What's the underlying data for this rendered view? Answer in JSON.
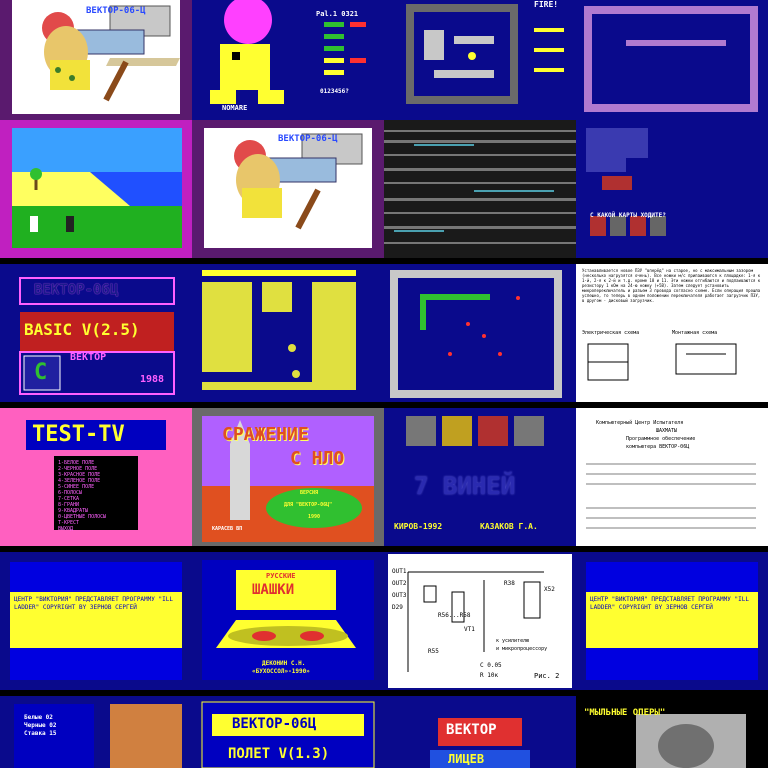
{
  "gallery": {
    "tiles": [
      {
        "caption_top": "ВЕКТОР-06-Ц"
      },
      {
        "status": "NOMARE",
        "score_label": "Pal.1 0321",
        "digits": "0123456?"
      },
      {
        "title": "FIRE!"
      },
      {},
      {},
      {
        "caption_top": "ВЕКТОР-06-Ц"
      },
      {},
      {
        "caption": "С КАКОЙ КАРТЫ ХОДИТЕ?"
      },
      {
        "brand": "ВЕКТОР-06Ц",
        "basic": "BASIC V(2.5)",
        "logo_letter": "C",
        "badge": "ВЕКТОР",
        "year": "1988"
      },
      {},
      {},
      {
        "para": "Устанавливается новое ПЗУ \"вперёд\" на старое, но с максимальным зазором (несколько нагрузятся очень). Все ножки м/с припаиваются к площадке: 1-я к 1-й, 2-я к 2-й и т.д. кроме 18 и 11. Эти ножки отгибаются и подпаиваются к резистору 1 кОм на 24-ю ножку (+5В). Затем следует установить микропереключатель и разъем 3 провода согласно схеме. Если операция прошла успешно, то теперь в одном положении переключателя работает загрузчик ПЗУ, в другом - дисковый загрузчик.",
        "left_label": "Электрическая схема",
        "right_label": "Монтажная схема"
      },
      {
        "title": "TEST-TV",
        "items": [
          "1-БЕЛОЕ ПОЛЕ",
          "2-ЧЕРНОЕ ПОЛЕ",
          "3-КРАСНОЕ ПОЛЕ",
          "4-ЗЕЛЕНОЕ ПОЛЕ",
          "5-СИНЕЕ ПОЛЕ",
          "6-ПОЛОСЫ",
          "7-СЕТКА",
          "8-ГРАНИ",
          "9-КВАДРАТЫ",
          "0-ЦВЕТНЫЕ ПОЛОСЫ",
          "Т-КРЕСТ",
          "ВЫХОД"
        ]
      },
      {
        "title1": "СРАЖЕНИЕ",
        "title2": "С НЛО",
        "oval1": "ВЕРСИЯ",
        "oval2": "ДЛЯ \"ВЕКТОР-06Ц\"",
        "oval3": "1990",
        "tag": "КАРАСЕВ ВП"
      },
      {
        "title": "7 ВИНЕЙ",
        "footer_left": "КИРОВ-1992",
        "footer_right": "КАЗАКОВ Г.А."
      },
      {
        "heading": "Компьютерный Центр Испытателя",
        "sub1": "ШАХМАТЫ",
        "sub2": "Программное обеспечение",
        "sub3": "компьютера ВЕКТОР-06Ц"
      },
      {
        "text": "ЦЕНТР \"ВИКТОРИЯ\" ПРЕДСТАВЛЯЕТ ПРОГРАММУ \"ILL LADDER\" COPYRIGHT BY ЗЕРНОВ СЕРГЕЙ"
      },
      {
        "title1": "РУССКИЕ",
        "title2": "ШАШКИ",
        "footer1": "ДЕКОНИН С.Н.",
        "footer2": "«БУХОССОЛ»-1990»"
      },
      {
        "labels": [
          "OUT1",
          "OUT2",
          "OUT3",
          "D29",
          "R56...R58",
          "VT1",
          "R55",
          "R38",
          "X52",
          "к усилителю",
          "и микропроцессору",
          "C 0.05",
          "R 10к",
          "Рис. 2"
        ]
      },
      {
        "text": "ЦЕНТР \"ВИКТОРИЯ\" ПРЕДСТАВЛЯЕТ ПРОГРАММУ \"ILL LADDER\" COPYRIGHT BY ЗЕРНОВ СЕРГЕЙ"
      },
      {
        "rows": [
          "Белые 02",
          "Черные 02",
          "Ставка 15"
        ]
      },
      {
        "brand": "ВЕКТОР-06Ц",
        "title": "ПОЛЕТ V(1.3)"
      },
      {
        "brand": "ВЕКТОР",
        "sub": "ЛИЦЕВ"
      },
      {
        "title": "\"МЫЛЬНЫЕ ОПЕРЫ\""
      }
    ]
  },
  "colors": {
    "purple": "#7a1a86",
    "navy": "#0a0a8c",
    "magenta": "#c020c0",
    "yellow": "#ffff30",
    "gray": "#6a6a6a"
  }
}
